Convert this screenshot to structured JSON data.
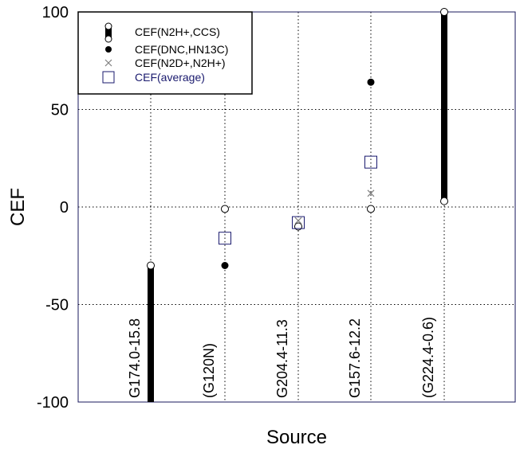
{
  "chart_data": {
    "type": "scatter",
    "xlabel": "Source",
    "ylabel": "CEF",
    "ylim": [
      -100,
      100
    ],
    "yticks": [
      "100",
      "50",
      "0",
      "-50",
      "-100"
    ],
    "grid": true,
    "legend_position": "top-left",
    "categories": [
      "G174.0-15.8",
      "(G120N)",
      "G204.4-11.3",
      "G157.6-12.2",
      "(G224.4-0.6)"
    ],
    "legend": [
      {
        "label": "CEF(N2H+,CCS)",
        "marker": "range-bar",
        "color": "#000000"
      },
      {
        "label": "CEF(DNC,HN13C)",
        "marker": "filled-circle",
        "color": "#000000"
      },
      {
        "label": "CEF(N2D+,N2H+)",
        "marker": "cross",
        "color": "#808080"
      },
      {
        "label": "CEF(average)",
        "marker": "open-square",
        "color": "#1a1a6e"
      }
    ],
    "series": [
      {
        "name": "CEF(N2H+,CCS)",
        "kind": "range",
        "points": [
          {
            "category": "G174.0-15.8",
            "low": -100,
            "high": -30
          },
          {
            "category": "(G120N)",
            "low": -1,
            "high": -1
          },
          {
            "category": "G204.4-11.3",
            "low": -10,
            "high": -10
          },
          {
            "category": "G157.6-12.2",
            "low": -1,
            "high": -1
          },
          {
            "category": "(G224.4-0.6)",
            "low": 3,
            "high": 100
          }
        ]
      },
      {
        "name": "CEF(DNC,HN13C)",
        "kind": "point",
        "points": [
          {
            "category": "(G120N)",
            "value": -30
          },
          {
            "category": "G157.6-12.2",
            "value": 64
          }
        ]
      },
      {
        "name": "CEF(N2D+,N2H+)",
        "kind": "point",
        "points": [
          {
            "category": "G204.4-11.3",
            "value": -7
          },
          {
            "category": "G157.6-12.2",
            "value": 7
          }
        ]
      },
      {
        "name": "CEF(average)",
        "kind": "point",
        "points": [
          {
            "category": "(G120N)",
            "value": -16
          },
          {
            "category": "G204.4-11.3",
            "value": -8
          },
          {
            "category": "G157.6-12.2",
            "value": 23
          }
        ]
      }
    ]
  }
}
